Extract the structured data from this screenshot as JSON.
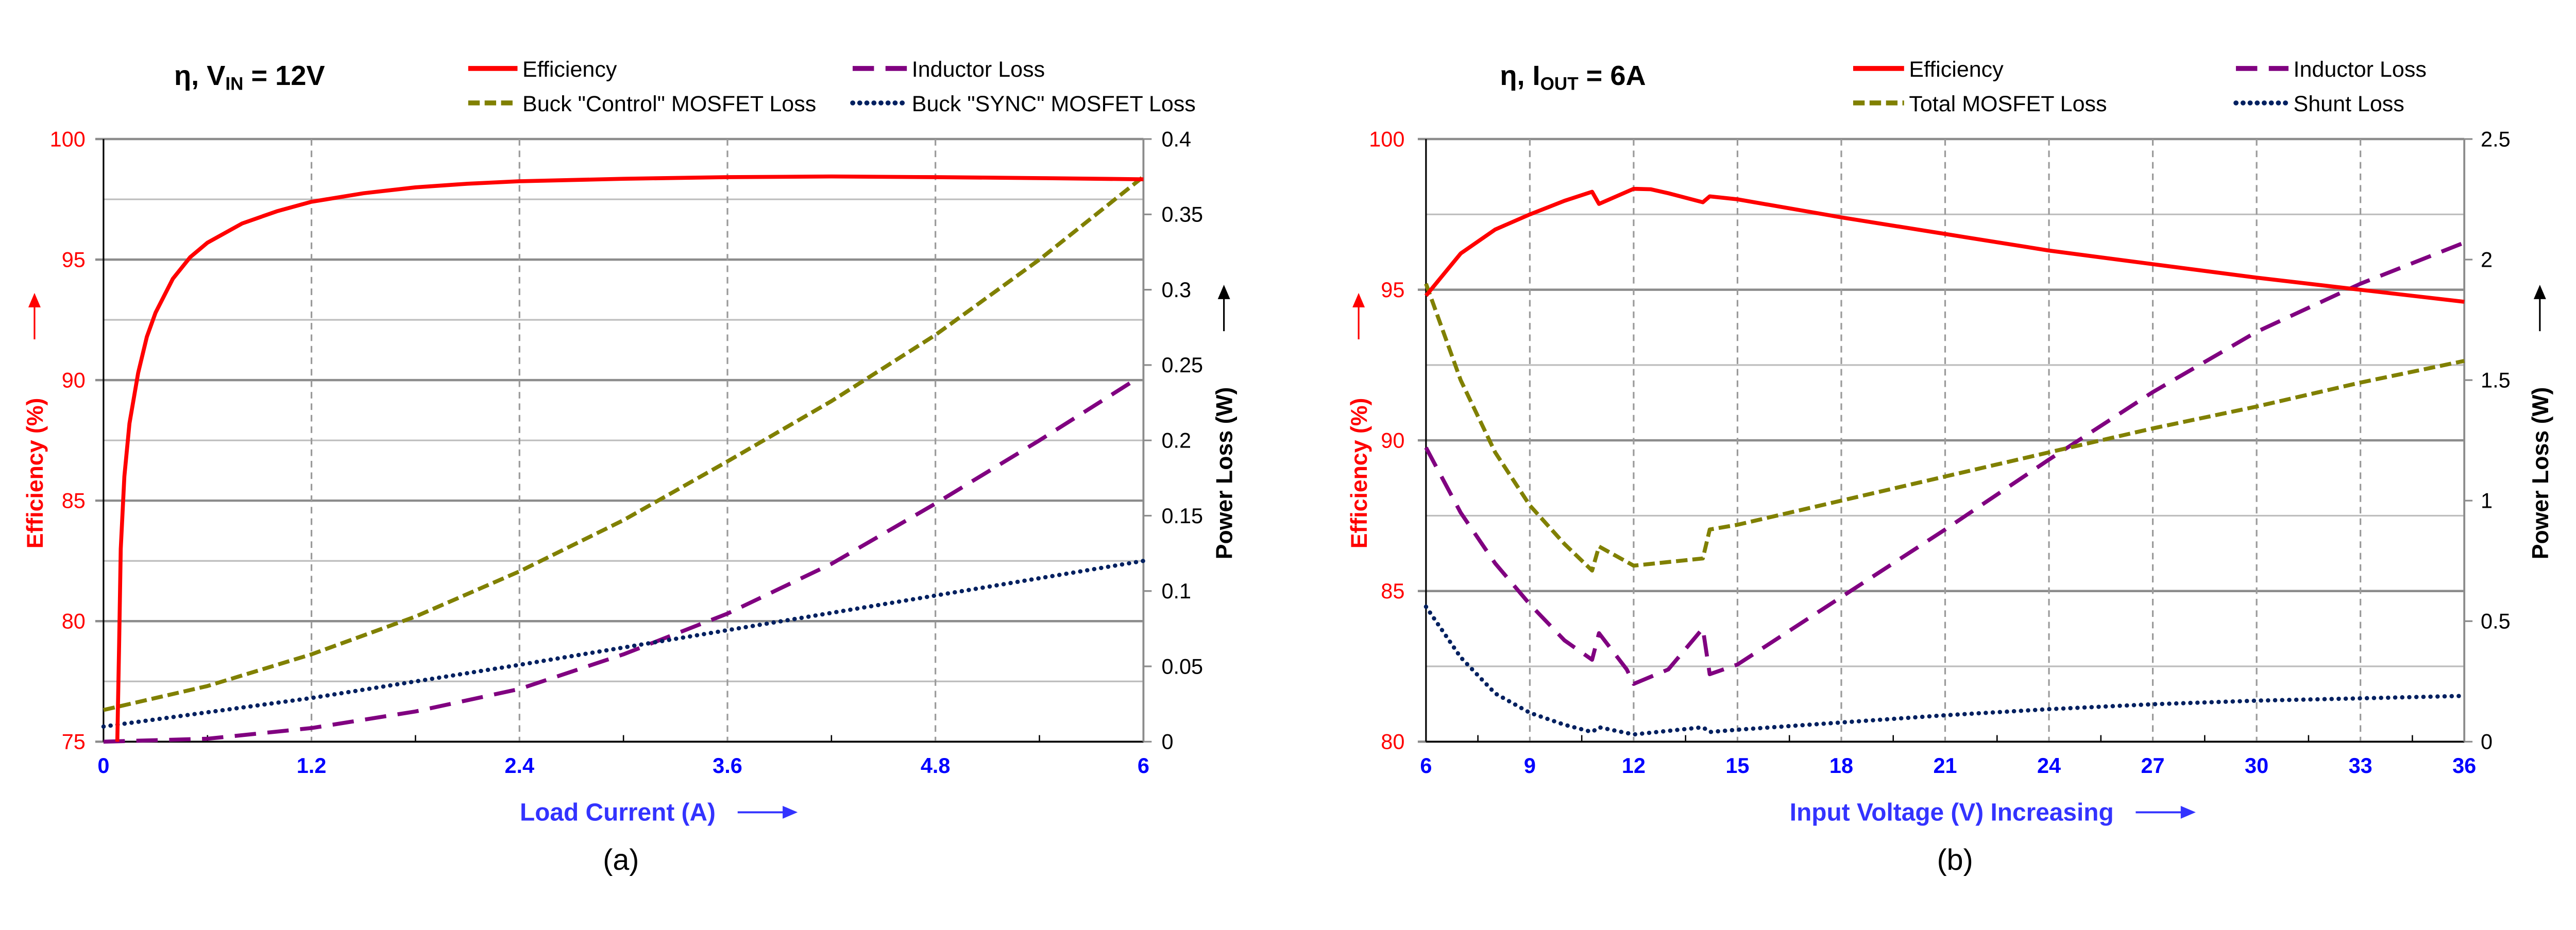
{
  "chart_data": [
    {
      "type": "line",
      "panel_label": "(a)",
      "title": {
        "prefix": "η, V",
        "sub": "IN",
        "suffix": " = 12V"
      },
      "xlabel": "Load Current (A)",
      "ylabel_left": "Efficiency (%)",
      "ylabel_right": "Power Loss (W)",
      "xlim": [
        0,
        6
      ],
      "ylim_left": [
        75,
        100
      ],
      "ylim_right": [
        0,
        0.4
      ],
      "x_ticks": [
        0,
        1.2,
        2.4,
        3.6,
        4.8,
        6
      ],
      "y_left_ticks": [
        75,
        80,
        85,
        90,
        95,
        100
      ],
      "y_right_ticks": [
        0,
        0.05,
        0.1,
        0.15,
        0.2,
        0.25,
        0.3,
        0.35,
        0.4
      ],
      "grid": true,
      "legend_placement": "top",
      "colors": {
        "left_axis": "#FF0000",
        "x_axis": "#0000FF",
        "right_axis": "#000000"
      },
      "series": [
        {
          "name": "Efficiency",
          "axis": "left",
          "style": "solid",
          "color": "#FF0000",
          "x": [
            0.08,
            0.09,
            0.1,
            0.12,
            0.15,
            0.2,
            0.25,
            0.3,
            0.4,
            0.5,
            0.6,
            0.8,
            1.0,
            1.2,
            1.5,
            1.8,
            2.1,
            2.4,
            3.0,
            3.6,
            4.2,
            4.8,
            5.4,
            6.0
          ],
          "y": [
            75,
            79,
            83,
            86,
            88.2,
            90.3,
            91.8,
            92.8,
            94.2,
            95.1,
            95.7,
            96.5,
            97.0,
            97.4,
            97.75,
            98.0,
            98.15,
            98.25,
            98.35,
            98.42,
            98.45,
            98.42,
            98.38,
            98.33
          ]
        },
        {
          "name": "Buck \"Control\" MOSFET Loss",
          "axis": "right",
          "style": "dashed",
          "color": "#808000",
          "x": [
            0,
            0.6,
            1.2,
            1.8,
            2.4,
            3.0,
            3.6,
            4.2,
            4.8,
            5.4,
            6.0
          ],
          "y": [
            0.021,
            0.037,
            0.058,
            0.083,
            0.113,
            0.147,
            0.186,
            0.226,
            0.27,
            0.32,
            0.375
          ]
        },
        {
          "name": "Inductor Loss",
          "axis": "right",
          "style": "longdash",
          "color": "#800080",
          "x": [
            0,
            0.6,
            1.2,
            1.8,
            2.4,
            3.0,
            3.6,
            4.2,
            4.8,
            5.4,
            5.95
          ],
          "y": [
            0,
            0.002,
            0.009,
            0.02,
            0.035,
            0.058,
            0.085,
            0.118,
            0.158,
            0.2,
            0.24
          ]
        },
        {
          "name": "Buck \"SYNC\" MOSFET Loss",
          "axis": "right",
          "style": "dotted",
          "color": "#002060",
          "x": [
            0,
            1.2,
            2.4,
            3.6,
            4.8,
            6.0
          ],
          "y": [
            0.01,
            0.029,
            0.051,
            0.074,
            0.097,
            0.12
          ]
        }
      ],
      "legend_order": [
        0,
        1,
        2,
        3
      ]
    },
    {
      "type": "line",
      "panel_label": "(b)",
      "title": {
        "prefix": "η, I",
        "sub": "OUT",
        "suffix": " = 6A"
      },
      "xlabel": "Input Voltage (V) Increasing",
      "ylabel_left": "Efficiency (%)",
      "ylabel_right": "Power Loss (W)",
      "xlim": [
        6,
        36
      ],
      "ylim_left": [
        80,
        100
      ],
      "ylim_right": [
        0,
        2.5
      ],
      "x_ticks": [
        6,
        9,
        12,
        15,
        18,
        21,
        24,
        27,
        30,
        33,
        36
      ],
      "y_left_ticks": [
        80,
        85,
        90,
        95,
        100
      ],
      "y_right_ticks": [
        0,
        0.5,
        1,
        1.5,
        2,
        2.5
      ],
      "grid": true,
      "legend_placement": "top",
      "colors": {
        "left_axis": "#FF0000",
        "x_axis": "#0000FF",
        "right_axis": "#000000"
      },
      "series": [
        {
          "name": "Efficiency",
          "axis": "left",
          "style": "solid",
          "color": "#FF0000",
          "x": [
            6,
            7,
            8,
            9,
            10,
            10.8,
            11,
            12,
            12.5,
            13,
            14,
            14.2,
            15,
            18,
            21,
            24,
            27,
            30,
            33,
            36
          ],
          "y": [
            94.8,
            96.2,
            97.0,
            97.5,
            97.95,
            98.25,
            97.85,
            98.35,
            98.33,
            98.2,
            97.9,
            98.1,
            98.0,
            97.4,
            96.85,
            96.3,
            95.85,
            95.4,
            95.0,
            94.6
          ]
        },
        {
          "name": "Inductor Loss",
          "axis": "right",
          "style": "longdash",
          "color": "#800080",
          "x": [
            6,
            7,
            8,
            9,
            10,
            10.8,
            11,
            11.8,
            12,
            13,
            14,
            14.2,
            15,
            18,
            21,
            24,
            27,
            30,
            33,
            36
          ],
          "y": [
            1.22,
            0.95,
            0.74,
            0.57,
            0.42,
            0.34,
            0.45,
            0.3,
            0.24,
            0.3,
            0.47,
            0.28,
            0.32,
            0.6,
            0.88,
            1.17,
            1.45,
            1.7,
            1.9,
            2.07
          ]
        },
        {
          "name": "Total MOSFET Loss",
          "axis": "right",
          "style": "dashed",
          "color": "#808000",
          "x": [
            6,
            7,
            8,
            9,
            10,
            10.8,
            11,
            12,
            14,
            14.2,
            15,
            18,
            21,
            24,
            27,
            30,
            33,
            36
          ],
          "y": [
            1.9,
            1.5,
            1.2,
            0.98,
            0.82,
            0.71,
            0.81,
            0.73,
            0.76,
            0.88,
            0.9,
            1.0,
            1.1,
            1.2,
            1.3,
            1.39,
            1.49,
            1.58
          ]
        },
        {
          "name": "Shunt Loss",
          "axis": "right",
          "style": "dotted",
          "color": "#002060",
          "x": [
            6,
            7,
            8,
            9,
            10,
            10.8,
            11,
            12,
            14,
            14.2,
            15,
            18,
            21,
            24,
            27,
            30,
            33,
            36
          ],
          "y": [
            0.56,
            0.35,
            0.2,
            0.12,
            0.07,
            0.04,
            0.06,
            0.03,
            0.06,
            0.04,
            0.05,
            0.08,
            0.11,
            0.135,
            0.155,
            0.17,
            0.18,
            0.19
          ]
        }
      ],
      "legend_order": [
        0,
        2,
        1,
        3
      ]
    }
  ]
}
